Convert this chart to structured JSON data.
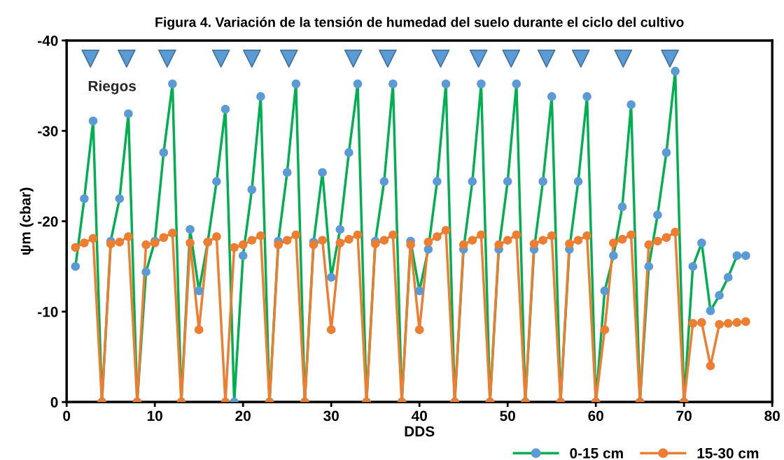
{
  "chart_data": {
    "type": "line",
    "title": "Figura 4. Variación de la tensión de humedad del suelo durante el ciclo del cultivo",
    "xlabel": "DDS",
    "ylabel": "ψm (cbar)",
    "annotations": [
      "Riegos"
    ],
    "xlim": [
      0,
      80
    ],
    "xticks": [
      0,
      10,
      20,
      30,
      40,
      50,
      60,
      70,
      80
    ],
    "ylim": [
      0,
      -40
    ],
    "yticks": [
      0,
      -10,
      -20,
      -30,
      -40
    ],
    "grid": false,
    "legend": "bottom right",
    "marker": "circle",
    "line_style": "solid",
    "series": [
      {
        "name": "0-15 cm",
        "color": "#00b050",
        "colors": [
          "#5b9bd5",
          "#5b9bd5",
          "#5b9bd5",
          "#5b9bd5",
          "#5b9bd5",
          "#5b9bd5",
          "#5b9bd5",
          "#5b9bd5",
          "#5b9bd5",
          "#5b9bd5",
          "#5b9bd5",
          "#5b9bd5",
          "#5b9bd5",
          "#5b9bd5",
          "#5b9bd5",
          "#5b9bd5",
          "#5b9bd5",
          "#5b9bd5",
          "#5b9bd5",
          "#5b9bd5",
          "#5b9bd5",
          "#5b9bd5",
          "#5b9bd5",
          "#5b9bd5",
          "#5b9bd5",
          "#5b9bd5",
          "#5b9bd5",
          "#5b9bd5",
          "#5b9bd5",
          "#5b9bd5",
          "#5b9bd5",
          "#5b9bd5",
          "#5b9bd5",
          "#5b9bd5",
          "#5b9bd5",
          "#5b9bd5",
          "#5b9bd5",
          "#5b9bd5",
          "#5b9bd5",
          "#5b9bd5",
          "#5b9bd5",
          "#5b9bd5",
          "#5b9bd5",
          "#5b9bd5",
          "#5b9bd5",
          "#5b9bd5",
          "#5b9bd5",
          "#5b9bd5",
          "#5b9bd5",
          "#5b9bd5",
          "#5b9bd5",
          "#5b9bd5",
          "#5b9bd5",
          "#5b9bd5",
          "#5b9bd5",
          "#5b9bd5",
          "#5b9bd5",
          "#5b9bd5",
          "#5b9bd5",
          "#5b9bd5",
          "#5b9bd5",
          "#5b9bd5",
          "#5b9bd5",
          "#5b9bd5",
          "#5b9bd5",
          "#5b9bd5",
          "#5b9bd5",
          "#5b9bd5",
          "#5b9bd5",
          "#5b9bd5",
          "#5b9bd5",
          "#5b9bd5",
          "#5b9bd5",
          "#5b9bd5",
          "#5b9bd5",
          "#5b9bd5",
          "#5b9bd5"
        ],
        "x": [
          1,
          2,
          3,
          4,
          5,
          6,
          7,
          8,
          9,
          10,
          11,
          12,
          13,
          14,
          15,
          16,
          17,
          18,
          19,
          20,
          21,
          22,
          23,
          24,
          25,
          26,
          27,
          28,
          29,
          30,
          31,
          32,
          33,
          34,
          35,
          36,
          37,
          38,
          39,
          40,
          41,
          42,
          43,
          44,
          45,
          46,
          47,
          48,
          49,
          50,
          51,
          52,
          53,
          54,
          55,
          56,
          57,
          58,
          59,
          60,
          61,
          62,
          63,
          64,
          65,
          66,
          67,
          68,
          69,
          70,
          71,
          72,
          73,
          74,
          75,
          76,
          77
        ],
        "values": [
          -15.0,
          -22.5,
          -31.1,
          0,
          -17.8,
          -22.5,
          -31.9,
          0,
          -14.4,
          -17.8,
          -27.6,
          -35.2,
          0,
          -19.1,
          -12.3,
          -17.7,
          -24.4,
          -32.4,
          0,
          -16.2,
          -23.5,
          -33.8,
          0,
          -17.8,
          -25.4,
          -35.2,
          0,
          -17.7,
          -25.4,
          -13.8,
          -19.1,
          -27.6,
          -35.2,
          0,
          -17.8,
          -24.4,
          -35.2,
          0,
          -17.8,
          -12.3,
          -16.9,
          -24.4,
          -35.2,
          0,
          -16.9,
          -24.4,
          -35.2,
          0,
          -16.9,
          -24.4,
          -35.2,
          0,
          -16.9,
          -24.4,
          -33.8,
          0,
          -16.9,
          -24.4,
          -33.8,
          0,
          -12.3,
          -16.2,
          -21.6,
          -32.9,
          0,
          -15.0,
          -20.7,
          -27.6,
          -36.6,
          0,
          -15.0,
          -17.6,
          -10.1,
          -11.8,
          -13.8,
          -16.2,
          -16.2
        ]
      },
      {
        "name": "15-30 cm",
        "color": "#ed7d31",
        "x": [
          1,
          2,
          3,
          4,
          5,
          6,
          7,
          8,
          9,
          10,
          11,
          12,
          13,
          14,
          15,
          16,
          17,
          18,
          19,
          20,
          21,
          22,
          23,
          24,
          25,
          26,
          27,
          28,
          29,
          30,
          31,
          32,
          33,
          34,
          35,
          36,
          37,
          38,
          39,
          40,
          41,
          42,
          43,
          44,
          45,
          46,
          47,
          48,
          49,
          50,
          51,
          52,
          53,
          54,
          55,
          56,
          57,
          58,
          59,
          60,
          61,
          62,
          63,
          64,
          65,
          66,
          67,
          68,
          69,
          70,
          71,
          72,
          73,
          74,
          75,
          76,
          77
        ],
        "values": [
          -17.1,
          -17.6,
          -18.1,
          0,
          -17.5,
          -17.7,
          -18.3,
          0,
          -17.4,
          -17.6,
          -18.2,
          -18.7,
          0,
          -17.6,
          -8.0,
          -17.7,
          -18.3,
          0,
          -17.1,
          -17.4,
          -17.9,
          -18.4,
          0,
          -17.4,
          -17.9,
          -18.5,
          0,
          -17.4,
          -17.9,
          -8.0,
          -17.6,
          -18.0,
          -18.5,
          0,
          -17.5,
          -17.9,
          -18.5,
          0,
          -17.4,
          -8.0,
          -17.7,
          -18.3,
          -19.0,
          0,
          -17.4,
          -17.9,
          -18.5,
          0,
          -17.4,
          -17.9,
          -18.5,
          0,
          -17.5,
          -17.9,
          -18.4,
          0,
          -17.5,
          -17.9,
          -18.4,
          0,
          -8.0,
          -17.6,
          -18.0,
          -18.5,
          0,
          -17.4,
          -17.8,
          -18.2,
          -18.8,
          0,
          -8.7,
          -8.8,
          -4.0,
          -8.6,
          -8.7,
          -8.8,
          -8.9
        ]
      },
      {
        "type": "scatter",
        "marker": "triangle",
        "color": "#5b9bd5",
        "x": [
          2.7,
          6.8,
          11.4,
          17.5,
          21.0,
          25.2,
          32.5,
          36.4,
          42.4,
          46.7,
          50.4,
          54.4,
          58.3,
          63.1,
          68.4
        ],
        "values": [
          -38.0,
          -38.0,
          -38.0,
          -38.0,
          -38.0,
          -38.0,
          -38.0,
          -38.0,
          -38.0,
          -38.0,
          -38.0,
          -38.0,
          -38.0,
          -38.0,
          -38.0
        ]
      }
    ]
  }
}
